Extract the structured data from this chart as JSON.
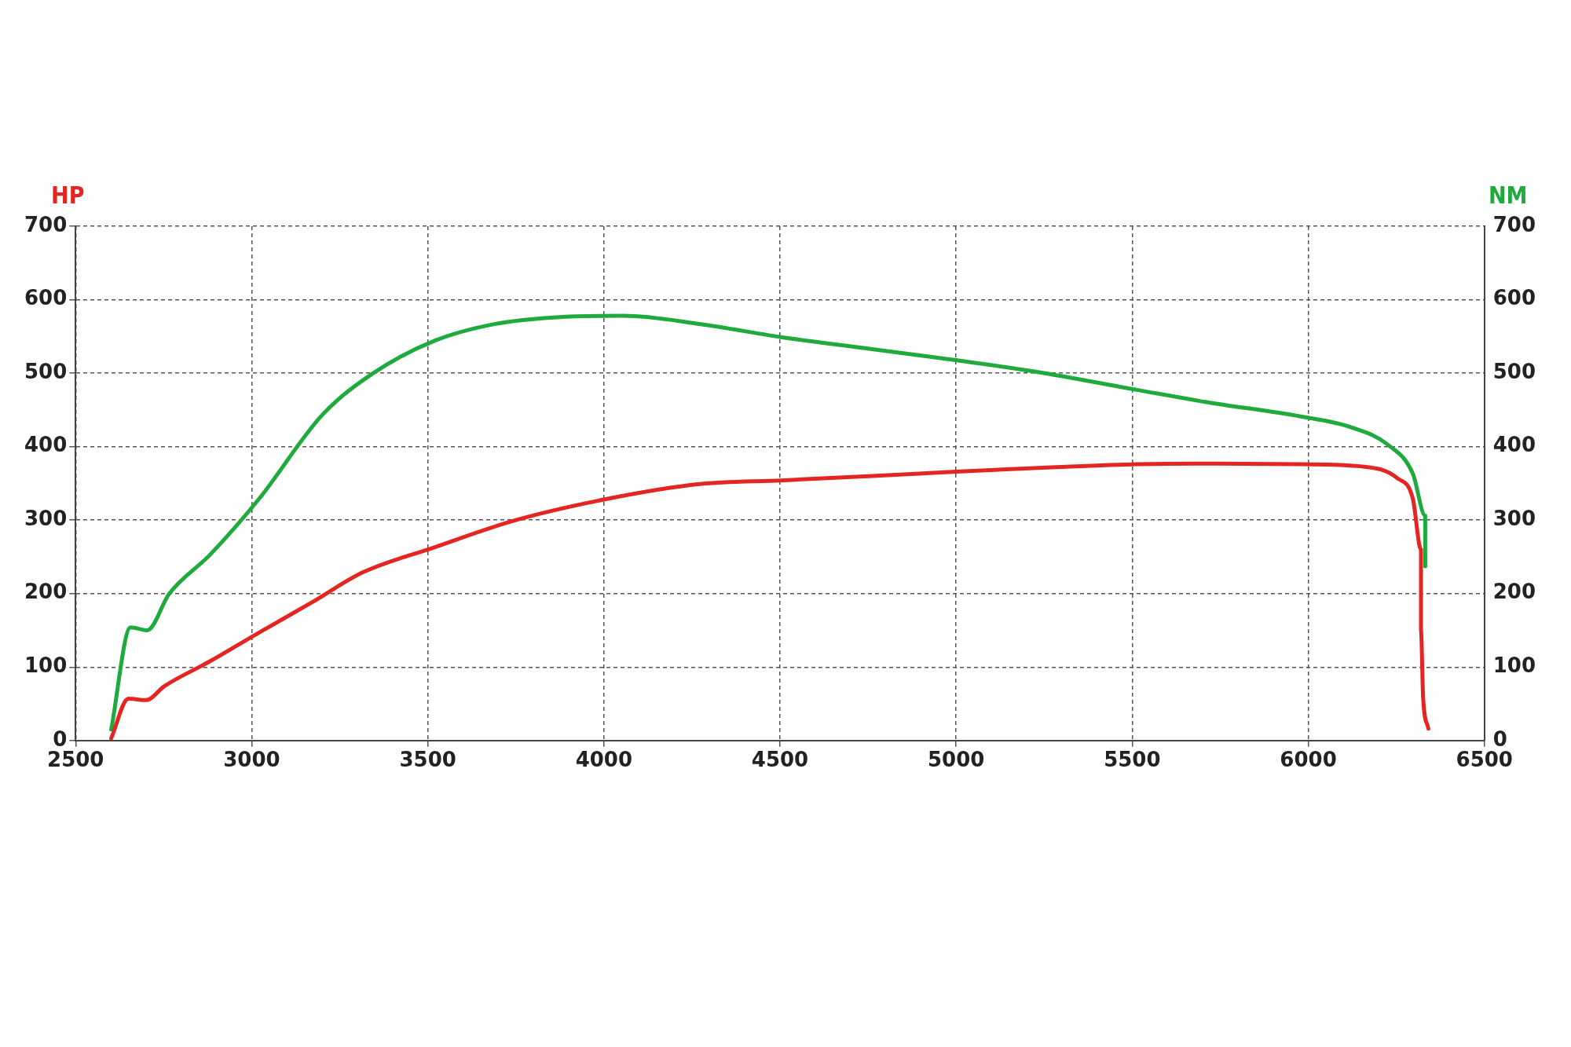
{
  "chart_data": {
    "type": "line",
    "ylabel": "HP",
    "y2label": "NM",
    "xlim": [
      2500,
      6500
    ],
    "xticks": [
      2500,
      3000,
      3500,
      4000,
      4500,
      5000,
      5500,
      6000,
      6500
    ],
    "ylim": [
      0,
      700
    ],
    "yticks": [
      0,
      100,
      200,
      300,
      400,
      500,
      600,
      700
    ],
    "y2lim": [
      0,
      700
    ],
    "y2ticks": [
      0,
      100,
      200,
      300,
      400,
      500,
      600,
      700
    ],
    "grid": true,
    "legend": false,
    "marker": "none",
    "line_style": "solid",
    "series": [
      {
        "color": "#e52521",
        "axis": "y",
        "x": [
          2601,
          2650,
          2700,
          2752,
          2882,
          3021,
          3171,
          3316,
          3519,
          3750,
          4011,
          4271,
          4503,
          4763,
          5000,
          5284,
          5516,
          5718,
          5979,
          6153,
          6253,
          6297,
          6320,
          6320,
          6326,
          6341
        ],
        "values": [
          3,
          57,
          55,
          74,
          108,
          147,
          188,
          229,
          263,
          300,
          329,
          349,
          354,
          360,
          366,
          372,
          376,
          377,
          376,
          373,
          357,
          329,
          260,
          150,
          59,
          16
        ]
      },
      {
        "color": "#1eaa3c",
        "axis": "y2",
        "x": [
          2601,
          2656,
          2703,
          2766,
          2882,
          3021,
          3200,
          3345,
          3519,
          3692,
          3866,
          4054,
          4271,
          4503,
          4676,
          4995,
          5226,
          5516,
          5718,
          5979,
          6124,
          6225,
          6297,
          6332,
          6332
        ],
        "values": [
          15,
          154,
          150,
          200,
          253,
          329,
          443,
          500,
          544,
          567,
          576,
          578,
          567,
          549,
          538,
          518,
          502,
          477,
          460,
          441,
          426,
          403,
          363,
          306,
          237
        ]
      }
    ]
  }
}
